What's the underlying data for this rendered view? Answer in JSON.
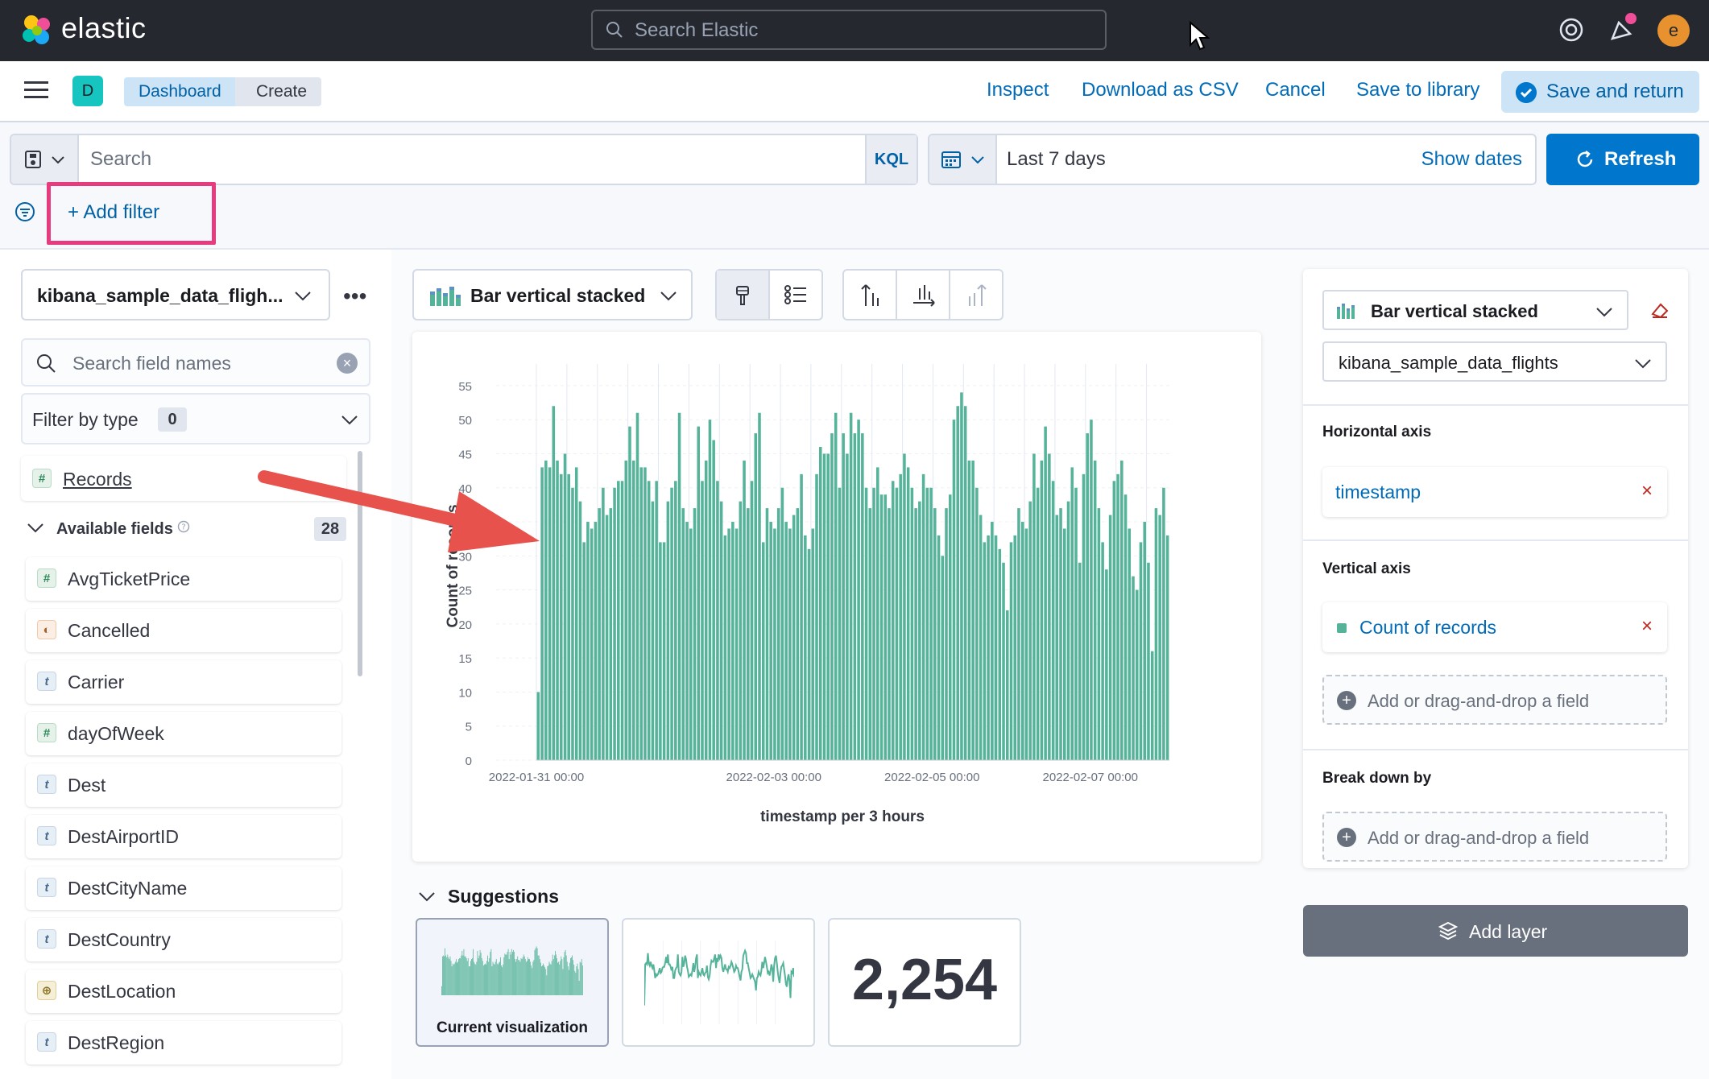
{
  "topbar": {
    "brand": "elastic",
    "search_placeholder": "Search Elastic",
    "avatar_initial": "e"
  },
  "header": {
    "space_initial": "D",
    "breadcrumbs": [
      "Dashboard",
      "Create"
    ],
    "links": [
      "Inspect",
      "Download as CSV",
      "Cancel",
      "Save to library"
    ],
    "save_return": "Save and return"
  },
  "query": {
    "placeholder": "Search",
    "language": "KQL",
    "date_range": "Last 7 days",
    "show_dates": "Show dates",
    "refresh": "Refresh",
    "add_filter": "+ Add filter"
  },
  "sidebar": {
    "index_pattern": "kibana_sample_data_fligh...",
    "more": "•••",
    "search_placeholder": "Search field names",
    "filter_by_type": "Filter by type",
    "filter_count": "0",
    "records": "Records",
    "available_fields_label": "Available fields",
    "available_count": "28",
    "fields": [
      {
        "name": "AvgTicketPrice",
        "type": "number",
        "icon": "#"
      },
      {
        "name": "Cancelled",
        "type": "boolean",
        "icon": "◐"
      },
      {
        "name": "Carrier",
        "type": "string",
        "icon": "t"
      },
      {
        "name": "dayOfWeek",
        "type": "number",
        "icon": "#"
      },
      {
        "name": "Dest",
        "type": "string",
        "icon": "t"
      },
      {
        "name": "DestAirportID",
        "type": "string",
        "icon": "t"
      },
      {
        "name": "DestCityName",
        "type": "string",
        "icon": "t"
      },
      {
        "name": "DestCountry",
        "type": "string",
        "icon": "t"
      },
      {
        "name": "DestLocation",
        "type": "geo",
        "icon": "⊕"
      },
      {
        "name": "DestRegion",
        "type": "string",
        "icon": "t"
      }
    ]
  },
  "workspace": {
    "vis_type": "Bar vertical stacked"
  },
  "chart_data": {
    "type": "bar",
    "title": "",
    "xlabel": "timestamp per 3 hours",
    "ylabel": "Count of records",
    "ylim": [
      0,
      57
    ],
    "yticks": [
      0,
      5,
      10,
      15,
      20,
      25,
      30,
      35,
      40,
      45,
      50,
      55
    ],
    "xtick_labels": [
      "2022-01-31 00:00",
      "2022-02-03 00:00",
      "2022-02-05 00:00",
      "2022-02-07 00:00"
    ],
    "color": "#54b399",
    "values": [
      10,
      43,
      44,
      43,
      52,
      44,
      42,
      45,
      42,
      40,
      43,
      38,
      32,
      35,
      34,
      35,
      37,
      40,
      36,
      37,
      40,
      41,
      41,
      44,
      49,
      44,
      51,
      43,
      43,
      41,
      38,
      41,
      32,
      32,
      38,
      40,
      41,
      51,
      37,
      35,
      34,
      37,
      49,
      41,
      44,
      50,
      47,
      41,
      38,
      33,
      34,
      35,
      34,
      38,
      44,
      37,
      41,
      48,
      51,
      32,
      37,
      35,
      34,
      37,
      40,
      35,
      34,
      36,
      37,
      42,
      33,
      31,
      34,
      42,
      46,
      45,
      45,
      48,
      51,
      40,
      48,
      45,
      51,
      48,
      50,
      48,
      40,
      37,
      40,
      43,
      39,
      39,
      37,
      41,
      40,
      42,
      45,
      43,
      40,
      37,
      38,
      42,
      40,
      40,
      37,
      33,
      30,
      37,
      39,
      50,
      52,
      54,
      52,
      44,
      44,
      40,
      36,
      32,
      33,
      35,
      33,
      31,
      29,
      22,
      32,
      33,
      37,
      35,
      34,
      38,
      45,
      40,
      44,
      49,
      45,
      41,
      36,
      37,
      34,
      38,
      43,
      40,
      29,
      42,
      48,
      50,
      44,
      37,
      32,
      28,
      36,
      41,
      42,
      44,
      39,
      34,
      27,
      25,
      32,
      35,
      29,
      16,
      37,
      36,
      40,
      33
    ]
  },
  "suggestions": {
    "title": "Suggestions",
    "current_label": "Current visualization",
    "metric_value": "2,254"
  },
  "config": {
    "vis_type": "Bar vertical stacked",
    "data_view": "kibana_sample_data_flights",
    "horizontal_axis_title": "Horizontal axis",
    "horizontal_field": "timestamp",
    "vertical_axis_title": "Vertical axis",
    "vertical_field": "Count of records",
    "drop_placeholder": "Add or drag-and-drop a field",
    "breakdown_title": "Break down by",
    "add_layer": "Add layer"
  }
}
